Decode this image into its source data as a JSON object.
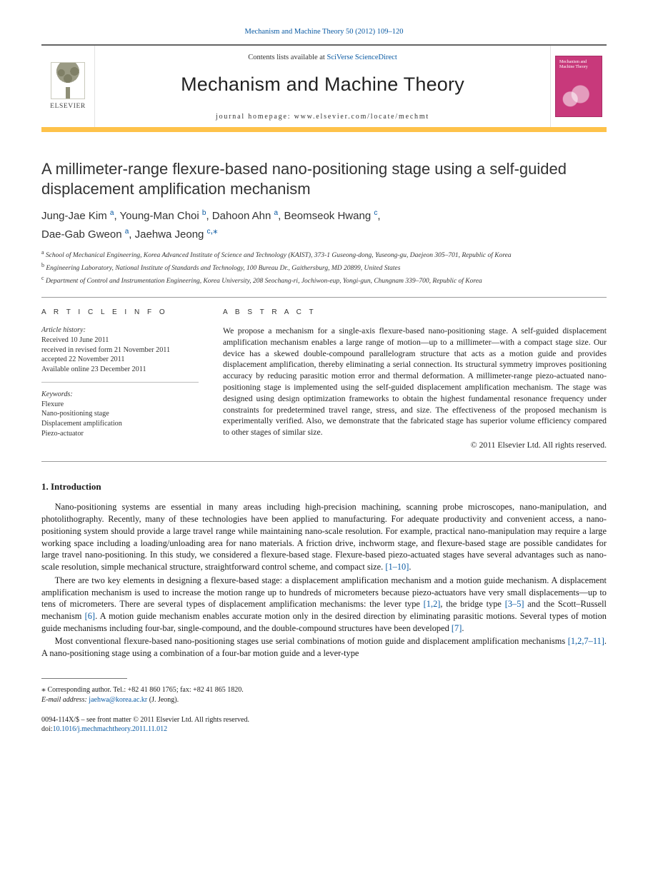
{
  "journal": {
    "top_link_text": "Mechanism and Machine Theory 50 (2012) 109–120",
    "contents_prefix": "Contents lists available at ",
    "contents_link": "SciVerse ScienceDirect",
    "title": "Mechanism and Machine Theory",
    "homepage_prefix": "journal homepage: ",
    "homepage_url": "www.elsevier.com/locate/mechmt",
    "publisher_word": "ELSEVIER",
    "cover_caption": "Mechanism and Machine Theory"
  },
  "article": {
    "title": "A millimeter-range flexure-based nano-positioning stage using a self-guided displacement amplification mechanism",
    "authors": [
      {
        "name": "Jung-Jae Kim",
        "aff": "a"
      },
      {
        "name": "Young-Man Choi",
        "aff": "b"
      },
      {
        "name": "Dahoon Ahn",
        "aff": "a"
      },
      {
        "name": "Beomseok Hwang",
        "aff": "c"
      },
      {
        "name": "Dae-Gab Gweon",
        "aff": "a"
      },
      {
        "name": "Jaehwa Jeong",
        "aff": "c",
        "corresponding": true
      }
    ],
    "affiliations": {
      "a": "School of Mechanical Engineering, Korea Advanced Institute of Science and Technology (KAIST), 373-1 Guseong-dong, Yuseong-gu, Daejeon 305–701, Republic of Korea",
      "b": "Engineering Laboratory, National Institute of Standards and Technology, 100 Bureau Dr., Gaithersburg, MD 20899, United States",
      "c": "Department of Control and Instrumentation Engineering, Korea University, 208 Seochang-ri, Jochiwon-eup, Yongi-gun, Chungnam 339–700, Republic of Korea"
    }
  },
  "info": {
    "heading": "A R T I C L E   I N F O",
    "history_label": "Article history:",
    "history": [
      "Received 10 June 2011",
      "received in revised form 21 November 2011",
      "accepted 22 November 2011",
      "Available online 23 December 2011"
    ],
    "keywords_label": "Keywords:",
    "keywords": [
      "Flexure",
      "Nano-positioning stage",
      "Displacement amplification",
      "Piezo-actuator"
    ]
  },
  "abstract": {
    "heading": "A B S T R A C T",
    "text": "We propose a mechanism for a single-axis flexure-based nano-positioning stage. A self-guided displacement amplification mechanism enables a large range of motion—up to a millimeter—with a compact stage size. Our device has a skewed double-compound parallelogram structure that acts as a motion guide and provides displacement amplification, thereby eliminating a serial connection. Its structural symmetry improves positioning accuracy by reducing parasitic motion error and thermal deformation. A millimeter-range piezo-actuated nano-positioning stage is implemented using the self-guided displacement amplification mechanism. The stage was designed using design optimization frameworks to obtain the highest fundamental resonance frequency under constraints for predetermined travel range, stress, and size. The effectiveness of the proposed mechanism is experimentally verified. Also, we demonstrate that the fabricated stage has superior volume efficiency compared to other stages of similar size.",
    "copyright": "© 2011 Elsevier Ltd. All rights reserved."
  },
  "sections": {
    "intro_heading": "1. Introduction",
    "intro_paragraphs": [
      {
        "runs": [
          {
            "t": "Nano-positioning systems are essential in many areas including high-precision machining, scanning probe microscopes, nano-manipulation, and photolithography. Recently, many of these technologies have been applied to manufacturing. For adequate productivity and convenient access, a nano-positioning system should provide a large travel range while maintaining nano-scale resolution. For example, practical nano-manipulation may require a large working space including a loading/unloading area for nano materials. A friction drive, inchworm stage, and flexure-based stage are possible candidates for large travel nano-positioning. In this study, we considered a flexure-based stage. Flexure-based piezo-actuated stages have several advantages such as nano-scale resolution, simple mechanical structure, straightforward control scheme, and compact size. "
          },
          {
            "t": "[1–10]",
            "link": true
          },
          {
            "t": "."
          }
        ]
      },
      {
        "runs": [
          {
            "t": "There are two key elements in designing a flexure-based stage: a displacement amplification mechanism and a motion guide mechanism. A displacement amplification mechanism is used to increase the motion range up to hundreds of micrometers because piezo-actuators have very small displacements—up to tens of micrometers. There are several types of displacement amplification mechanisms: the lever type "
          },
          {
            "t": "[1,2]",
            "link": true
          },
          {
            "t": ", the bridge type "
          },
          {
            "t": "[3–5]",
            "link": true
          },
          {
            "t": " and the Scott–Russell mechanism "
          },
          {
            "t": "[6]",
            "link": true
          },
          {
            "t": ". A motion guide mechanism enables accurate motion only in the desired direction by eliminating parasitic motions. Several types of motion guide mechanisms including four-bar, single-compound, and the double-compound structures have been developed "
          },
          {
            "t": "[7]",
            "link": true
          },
          {
            "t": "."
          }
        ]
      },
      {
        "runs": [
          {
            "t": "Most conventional flexure-based nano-positioning stages use serial combinations of motion guide and displacement amplification mechanisms "
          },
          {
            "t": "[1,2,7–11]",
            "link": true
          },
          {
            "t": ". A nano-positioning stage using a combination of a four-bar motion guide and a lever-type"
          }
        ]
      }
    ]
  },
  "footnote": {
    "corr_label": "Corresponding author. Tel.: ",
    "tel": "+82 41 860 1765",
    "fax_label": "; fax: ",
    "fax": "+82 41 865 1820.",
    "email_label": "E-mail address: ",
    "email": "jaehwa@korea.ac.kr",
    "email_suffix": " (J. Jeong)."
  },
  "issn": {
    "line1_prefix": "0094-114X/$ – see front matter ",
    "line1_copyright": "© 2011 Elsevier Ltd. All rights reserved.",
    "doi_label": "doi:",
    "doi": "10.1016/j.mechmachtheory.2011.11.012"
  },
  "colors": {
    "link": "#0a5aa3",
    "accent_bar": "#fec24a",
    "cover_bg": "#c8397b",
    "rule": "#9b9b9b"
  }
}
